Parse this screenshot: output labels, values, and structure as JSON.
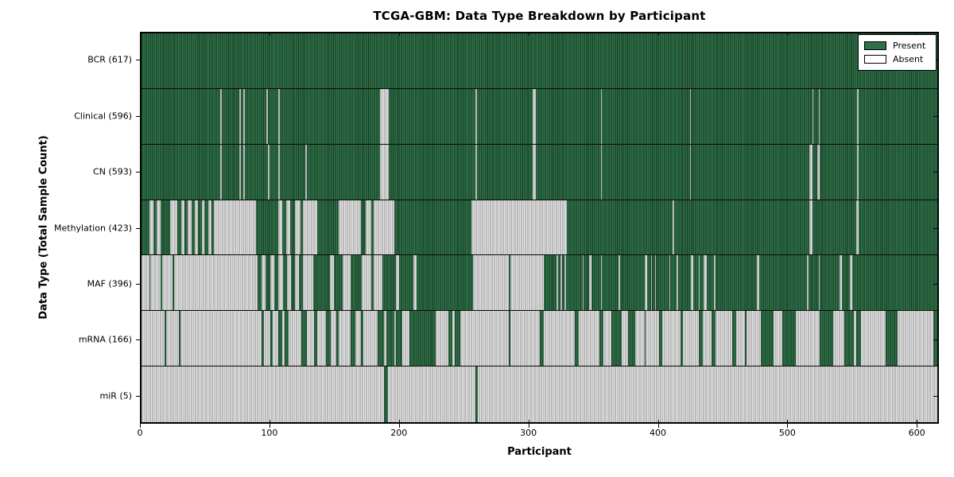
{
  "chart_data": {
    "type": "heatmap",
    "title": "TCGA-GBM: Data Type Breakdown by Participant",
    "xlabel": "Participant",
    "ylabel": "Data Type (Total Sample Count)",
    "xlim": [
      0,
      617
    ],
    "x_ticks": [
      0,
      100,
      200,
      300,
      400,
      500,
      600
    ],
    "grid": false,
    "legend_position": "upper-right",
    "legend": {
      "present_label": "Present",
      "absent_label": "Absent"
    },
    "colors": {
      "present_fill": "#2e7049",
      "present_edge": "#16381f",
      "absent_fill": "#e3e3e3",
      "absent_edge": "#8f8f8f",
      "axis": "#000000",
      "background": "#ffffff"
    },
    "rows_note": "Each row spans participants 0-617. 'base' is the dominant state painted across the row; 'runs' are [start,end) participant intervals painted in the opposite state.",
    "rows": [
      {
        "data_type": "BCR",
        "label": "BCR (617)",
        "present_count": 617,
        "base": "present",
        "runs": []
      },
      {
        "data_type": "Clinical",
        "label": "Clinical (596)",
        "present_count": 596,
        "base": "present",
        "runs": [
          [
            61,
            62
          ],
          [
            76,
            77
          ],
          [
            79,
            80
          ],
          [
            97,
            98
          ],
          [
            106,
            107
          ],
          [
            185,
            192
          ],
          [
            259,
            260
          ],
          [
            303,
            306
          ],
          [
            356,
            357
          ],
          [
            425,
            426
          ],
          [
            520,
            521
          ],
          [
            525,
            526
          ],
          [
            555,
            556
          ]
        ]
      },
      {
        "data_type": "CN",
        "label": "CN (593)",
        "present_count": 593,
        "base": "present",
        "runs": [
          [
            61,
            62
          ],
          [
            76,
            77
          ],
          [
            79,
            80
          ],
          [
            98,
            99
          ],
          [
            106,
            107
          ],
          [
            127,
            128
          ],
          [
            185,
            192
          ],
          [
            259,
            260
          ],
          [
            303,
            306
          ],
          [
            356,
            357
          ],
          [
            425,
            426
          ],
          [
            518,
            520
          ],
          [
            524,
            526
          ],
          [
            555,
            556
          ]
        ]
      },
      {
        "data_type": "Methylation",
        "label": "Methylation (423)",
        "present_count": 423,
        "base": "present",
        "runs": [
          [
            6,
            9
          ],
          [
            12,
            15
          ],
          [
            22,
            28
          ],
          [
            31,
            33
          ],
          [
            36,
            39
          ],
          [
            41,
            44
          ],
          [
            47,
            49
          ],
          [
            52,
            54
          ],
          [
            56,
            89
          ],
          [
            106,
            109
          ],
          [
            112,
            115
          ],
          [
            119,
            123
          ],
          [
            125,
            136
          ],
          [
            153,
            170
          ],
          [
            174,
            178
          ],
          [
            180,
            196
          ],
          [
            256,
            330
          ],
          [
            412,
            413
          ],
          [
            518,
            520
          ],
          [
            554,
            556
          ]
        ]
      },
      {
        "data_type": "MAF",
        "label": "MAF (396)",
        "present_count": 396,
        "base": "present",
        "runs": [
          [
            0,
            6
          ],
          [
            7,
            15
          ],
          [
            16,
            24
          ],
          [
            25,
            90
          ],
          [
            93,
            96
          ],
          [
            100,
            103
          ],
          [
            106,
            110
          ],
          [
            113,
            116
          ],
          [
            119,
            122
          ],
          [
            125,
            133
          ],
          [
            146,
            149
          ],
          [
            156,
            162
          ],
          [
            171,
            178
          ],
          [
            180,
            187
          ],
          [
            197,
            200
          ],
          [
            211,
            213
          ],
          [
            257,
            285
          ],
          [
            286,
            312
          ],
          [
            322,
            323
          ],
          [
            325,
            326
          ],
          [
            328,
            329
          ],
          [
            342,
            343
          ],
          [
            347,
            349
          ],
          [
            356,
            357
          ],
          [
            370,
            371
          ],
          [
            390,
            392
          ],
          [
            395,
            396
          ],
          [
            398,
            399
          ],
          [
            409,
            410
          ],
          [
            415,
            416
          ],
          [
            426,
            428
          ],
          [
            432,
            433
          ],
          [
            436,
            438
          ],
          [
            444,
            445
          ],
          [
            477,
            479
          ],
          [
            516,
            517
          ],
          [
            525,
            526
          ],
          [
            541,
            543
          ],
          [
            549,
            551
          ]
        ]
      },
      {
        "data_type": "mRNA",
        "label": "mRNA (166)",
        "present_count": 166,
        "base": "absent",
        "runs": [
          [
            18,
            19
          ],
          [
            29,
            30
          ],
          [
            93,
            95
          ],
          [
            100,
            102
          ],
          [
            106,
            109
          ],
          [
            111,
            114
          ],
          [
            124,
            128
          ],
          [
            134,
            136
          ],
          [
            143,
            147
          ],
          [
            151,
            153
          ],
          [
            162,
            166
          ],
          [
            170,
            172
          ],
          [
            183,
            188
          ],
          [
            190,
            196
          ],
          [
            197,
            202
          ],
          [
            208,
            228
          ],
          [
            238,
            241
          ],
          [
            243,
            247
          ],
          [
            285,
            286
          ],
          [
            309,
            312
          ],
          [
            336,
            339
          ],
          [
            355,
            358
          ],
          [
            364,
            372
          ],
          [
            377,
            383
          ],
          [
            390,
            391
          ],
          [
            401,
            404
          ],
          [
            418,
            420
          ],
          [
            432,
            435
          ],
          [
            442,
            445
          ],
          [
            458,
            461
          ],
          [
            468,
            469
          ],
          [
            480,
            490
          ],
          [
            497,
            507
          ],
          [
            526,
            536
          ],
          [
            545,
            552
          ],
          [
            554,
            558
          ],
          [
            577,
            586
          ],
          [
            614,
            617
          ]
        ]
      },
      {
        "data_type": "miR",
        "label": "miR (5)",
        "present_count": 5,
        "base": "absent",
        "runs": [
          [
            188,
            191
          ],
          [
            259,
            261
          ]
        ]
      }
    ]
  }
}
